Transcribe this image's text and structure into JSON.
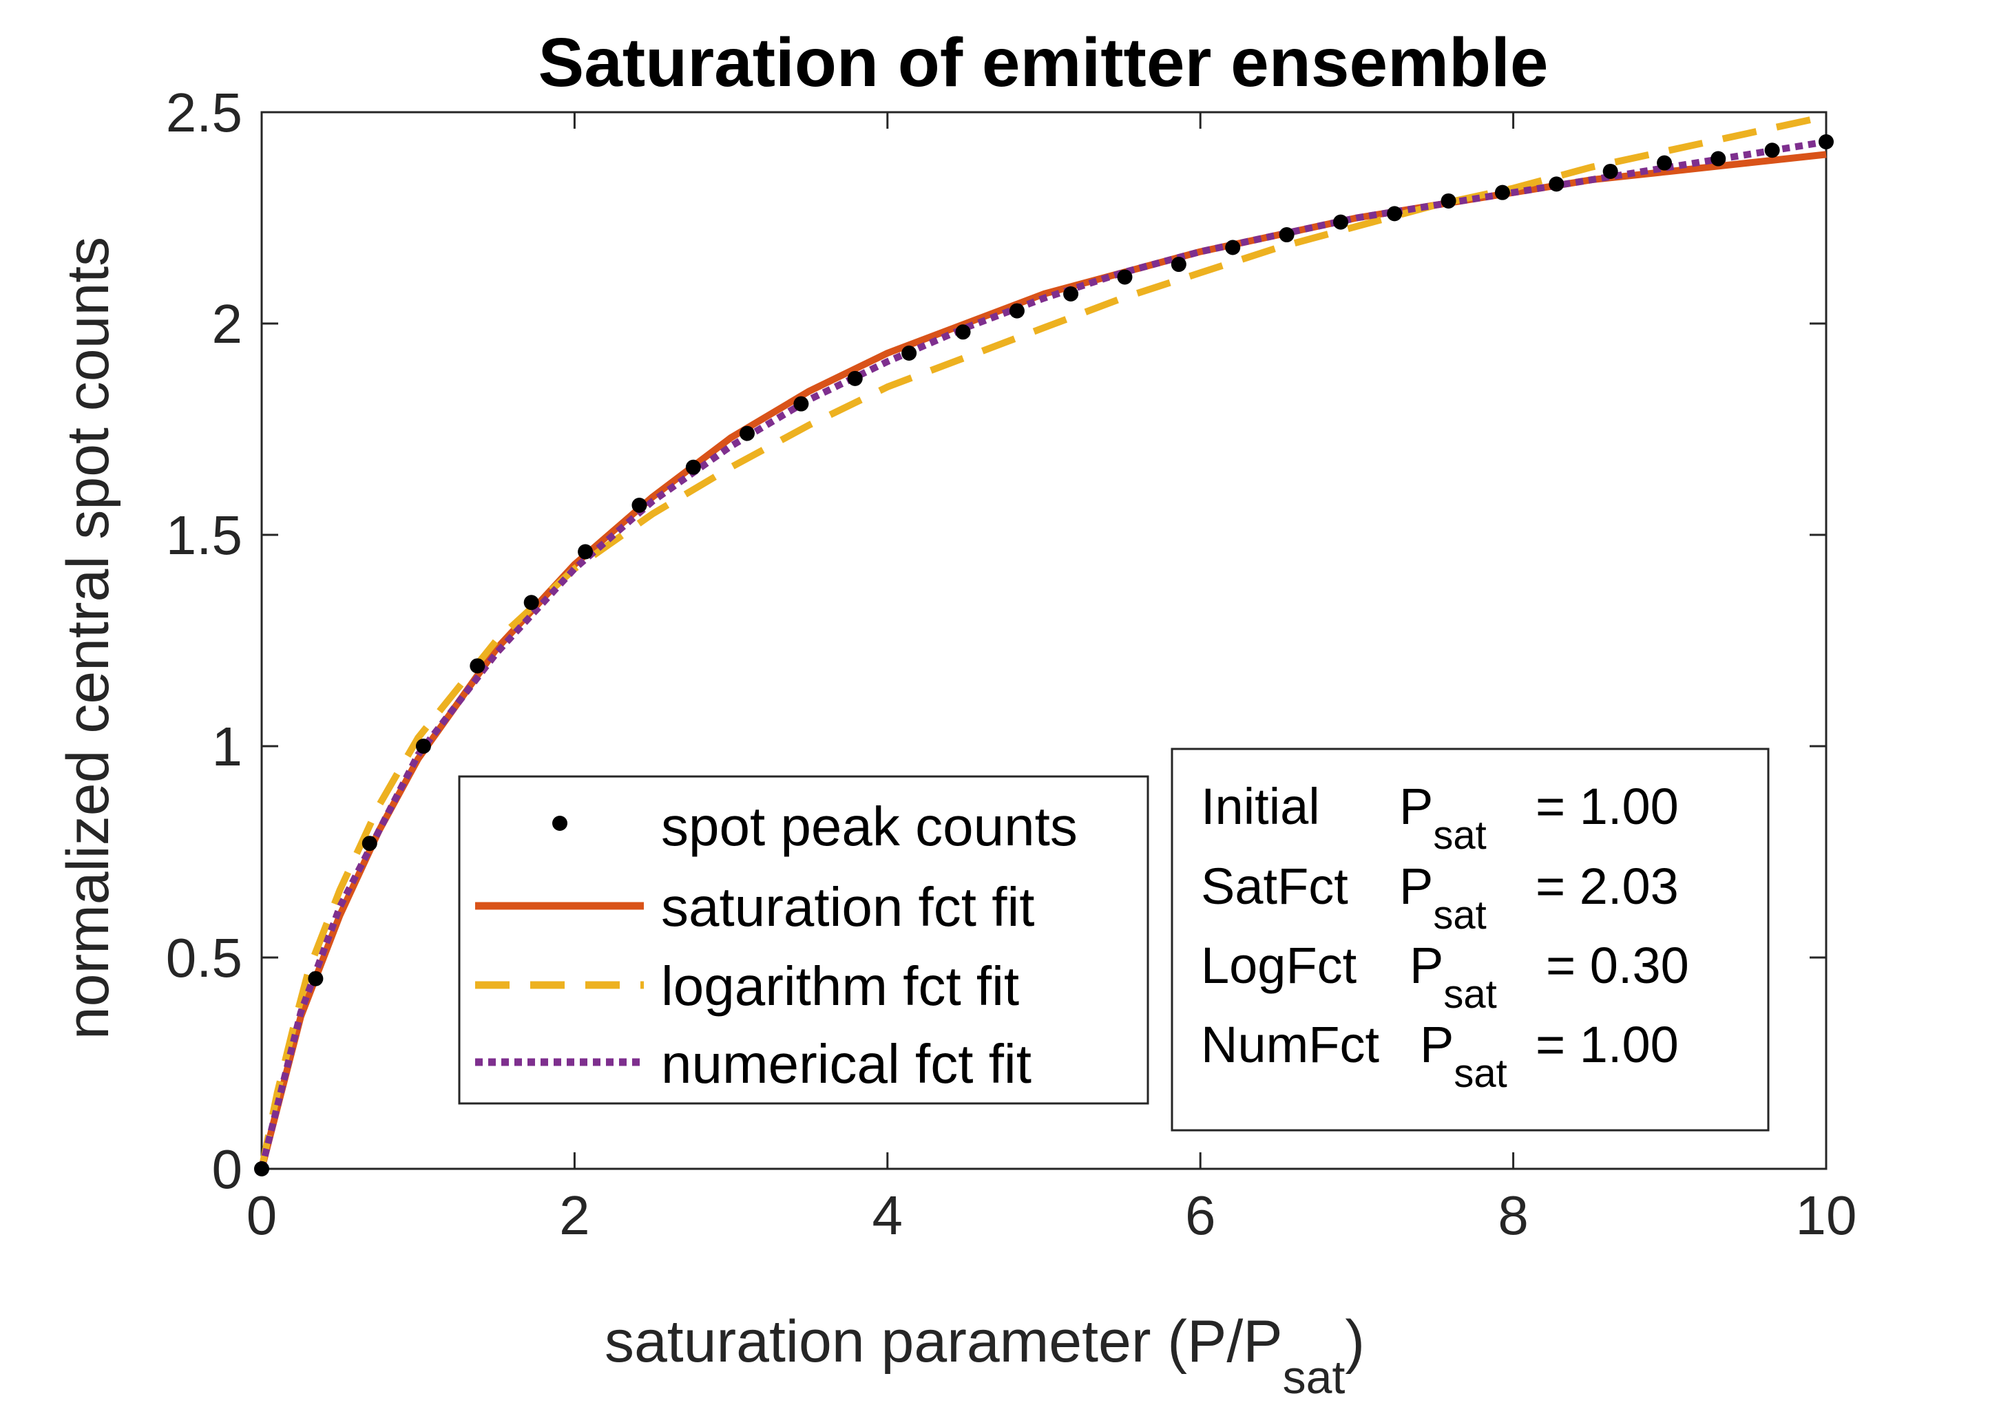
{
  "chart_data": {
    "type": "line",
    "title": "Saturation of emitter ensemble",
    "xlabel": {
      "main": "saturation parameter (P/P",
      "sub": "sat",
      "close": ")"
    },
    "ylabel": "normalized central spot counts",
    "xlim": [
      0,
      10
    ],
    "ylim": [
      0,
      2.5
    ],
    "x_ticks": [
      0,
      2,
      4,
      6,
      8,
      10
    ],
    "x_tick_labels": [
      "0",
      "2",
      "4",
      "6",
      "8",
      "10"
    ],
    "y_ticks": [
      0,
      0.5,
      1,
      1.5,
      2,
      2.5
    ],
    "y_tick_labels": [
      "0",
      "0.5",
      "1",
      "1.5",
      "2",
      "2.5"
    ],
    "grid": false,
    "legend_position": "bottom-center",
    "series": [
      {
        "name": "spot peak counts",
        "style": "markers",
        "color": "#000000",
        "x": [
          0,
          0.345,
          0.69,
          1.034,
          1.379,
          1.724,
          2.069,
          2.414,
          2.759,
          3.103,
          3.448,
          3.793,
          4.138,
          4.483,
          4.828,
          5.172,
          5.517,
          5.862,
          6.207,
          6.552,
          6.897,
          7.241,
          7.586,
          7.931,
          8.276,
          8.621,
          8.966,
          9.31,
          9.655,
          10
        ],
        "values": [
          0,
          0.45,
          0.77,
          1.0,
          1.19,
          1.34,
          1.46,
          1.57,
          1.66,
          1.74,
          1.81,
          1.87,
          1.93,
          1.98,
          2.03,
          2.07,
          2.11,
          2.14,
          2.18,
          2.21,
          2.24,
          2.26,
          2.29,
          2.31,
          2.33,
          2.36,
          2.38,
          2.39,
          2.41,
          2.43
        ]
      },
      {
        "name": "saturation fct fit",
        "style": "solid",
        "color": "#D95319",
        "x": [
          0,
          0.25,
          0.5,
          0.75,
          1,
          1.5,
          2,
          2.5,
          3,
          3.5,
          4,
          4.5,
          5,
          5.5,
          6,
          6.5,
          7,
          7.5,
          8,
          8.5,
          9,
          9.5,
          10
        ],
        "values": [
          0,
          0.36,
          0.6,
          0.8,
          0.97,
          1.23,
          1.43,
          1.59,
          1.73,
          1.84,
          1.93,
          2.0,
          2.07,
          2.12,
          2.17,
          2.21,
          2.25,
          2.28,
          2.31,
          2.34,
          2.36,
          2.38,
          2.4
        ]
      },
      {
        "name": "logarithm fct fit",
        "style": "dashed",
        "color": "#EDB120",
        "x": [
          0,
          0.1,
          0.2,
          0.3,
          0.5,
          0.75,
          1,
          1.5,
          2,
          2.5,
          3,
          3.5,
          4,
          4.5,
          5,
          5.5,
          6,
          6.5,
          7,
          7.5,
          8,
          8.5,
          9,
          9.5,
          10
        ],
        "values": [
          0,
          0.18,
          0.33,
          0.47,
          0.66,
          0.86,
          1.02,
          1.25,
          1.42,
          1.55,
          1.66,
          1.76,
          1.85,
          1.92,
          1.99,
          2.06,
          2.12,
          2.18,
          2.23,
          2.28,
          2.32,
          2.37,
          2.41,
          2.45,
          2.49
        ]
      },
      {
        "name": "numerical fct fit",
        "style": "dotted",
        "color": "#7E2F8E",
        "x": [
          0,
          0.25,
          0.5,
          0.75,
          1,
          1.5,
          2,
          2.5,
          3,
          3.5,
          4,
          4.5,
          5,
          5.5,
          6,
          6.5,
          7,
          7.5,
          8,
          8.5,
          9,
          9.5,
          10
        ],
        "values": [
          0,
          0.37,
          0.62,
          0.8,
          0.98,
          1.22,
          1.42,
          1.58,
          1.71,
          1.82,
          1.91,
          1.99,
          2.06,
          2.12,
          2.17,
          2.21,
          2.25,
          2.28,
          2.31,
          2.34,
          2.37,
          2.4,
          2.43
        ]
      }
    ],
    "annotation": {
      "rows": [
        {
          "label": "Initial",
          "symbol": "P",
          "sub": "sat",
          "value": "= 1.00"
        },
        {
          "label": "SatFct",
          "symbol": "P",
          "sub": "sat",
          "value": "= 2.03"
        },
        {
          "label": "LogFct",
          "symbol": "P",
          "sub": "sat",
          "value": "= 0.30"
        },
        {
          "label": "NumFct",
          "symbol": "P",
          "sub": "sat",
          "value": "= 1.00"
        }
      ]
    }
  }
}
